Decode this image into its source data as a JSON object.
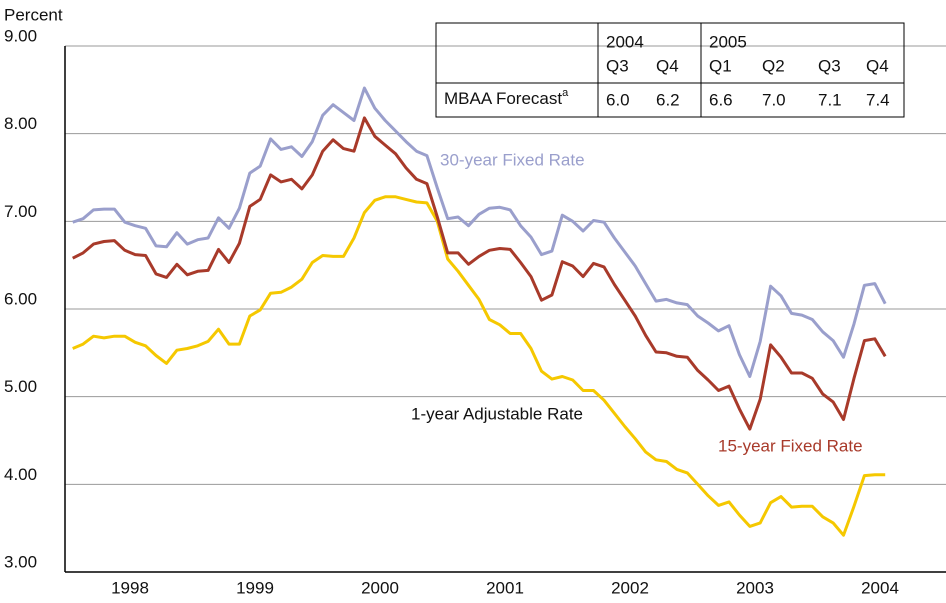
{
  "chart_data": {
    "type": "line",
    "ylabel": "Percent",
    "x": [
      1998.042,
      1998.125,
      1998.208,
      1998.292,
      1998.375,
      1998.458,
      1998.542,
      1998.625,
      1998.708,
      1998.792,
      1998.875,
      1998.958,
      1999.042,
      1999.125,
      1999.208,
      1999.292,
      1999.375,
      1999.458,
      1999.542,
      1999.625,
      1999.708,
      1999.792,
      1999.875,
      1999.958,
      2000.042,
      2000.125,
      2000.208,
      2000.292,
      2000.375,
      2000.458,
      2000.542,
      2000.625,
      2000.708,
      2000.792,
      2000.875,
      2000.958,
      2001.042,
      2001.125,
      2001.208,
      2001.292,
      2001.375,
      2001.458,
      2001.542,
      2001.625,
      2001.708,
      2001.792,
      2001.875,
      2001.958,
      2002.042,
      2002.125,
      2002.208,
      2002.292,
      2002.375,
      2002.458,
      2002.542,
      2002.625,
      2002.708,
      2002.792,
      2002.875,
      2002.958,
      2003.042,
      2003.125,
      2003.208,
      2003.292,
      2003.375,
      2003.458,
      2003.542,
      2003.625,
      2003.708,
      2003.792,
      2003.875,
      2003.958,
      2004.042,
      2004.125,
      2004.208,
      2004.292,
      2004.375,
      2004.458,
      2004.542
    ],
    "series": [
      {
        "name": "30-year Fixed Rate",
        "color": "#9a9fcc",
        "values": [
          6.99,
          7.03,
          7.13,
          7.14,
          7.14,
          6.99,
          6.95,
          6.92,
          6.72,
          6.71,
          6.87,
          6.74,
          6.79,
          6.81,
          7.04,
          6.92,
          7.15,
          7.55,
          7.63,
          7.94,
          7.82,
          7.85,
          7.74,
          7.91,
          8.21,
          8.33,
          8.24,
          8.15,
          8.52,
          8.29,
          8.15,
          8.03,
          7.91,
          7.8,
          7.75,
          7.38,
          7.03,
          7.05,
          6.95,
          7.08,
          7.15,
          7.16,
          7.13,
          6.95,
          6.82,
          6.62,
          6.66,
          7.07,
          7.0,
          6.89,
          7.01,
          6.99,
          6.81,
          6.65,
          6.49,
          6.29,
          6.09,
          6.11,
          6.07,
          6.05,
          5.92,
          5.84,
          5.75,
          5.81,
          5.48,
          5.23,
          5.63,
          6.26,
          6.15,
          5.95,
          5.93,
          5.88,
          5.74,
          5.64,
          5.45,
          5.83,
          6.27,
          6.29,
          6.06
        ]
      },
      {
        "name": "15-year Fixed Rate",
        "color": "#a83a2a",
        "values": [
          6.58,
          6.64,
          6.74,
          6.77,
          6.78,
          6.67,
          6.62,
          6.61,
          6.4,
          6.36,
          6.51,
          6.39,
          6.43,
          6.44,
          6.68,
          6.53,
          6.75,
          7.17,
          7.25,
          7.53,
          7.45,
          7.48,
          7.37,
          7.53,
          7.8,
          7.93,
          7.83,
          7.8,
          8.18,
          7.97,
          7.87,
          7.77,
          7.61,
          7.48,
          7.43,
          7.05,
          6.64,
          6.64,
          6.51,
          6.6,
          6.67,
          6.69,
          6.68,
          6.53,
          6.37,
          6.1,
          6.16,
          6.54,
          6.49,
          6.37,
          6.52,
          6.48,
          6.28,
          6.1,
          5.92,
          5.7,
          5.51,
          5.5,
          5.46,
          5.45,
          5.3,
          5.19,
          5.07,
          5.12,
          4.86,
          4.63,
          4.97,
          5.59,
          5.45,
          5.27,
          5.27,
          5.21,
          5.03,
          4.94,
          4.74,
          5.21,
          5.64,
          5.66,
          5.46
        ]
      },
      {
        "name": "1-year Adjustable Rate",
        "color": "#f5c800",
        "values": [
          5.55,
          5.6,
          5.69,
          5.67,
          5.69,
          5.69,
          5.62,
          5.58,
          5.47,
          5.38,
          5.53,
          5.55,
          5.58,
          5.63,
          5.77,
          5.6,
          5.6,
          5.92,
          5.99,
          6.18,
          6.19,
          6.25,
          6.34,
          6.53,
          6.61,
          6.6,
          6.6,
          6.81,
          7.1,
          7.24,
          7.28,
          7.28,
          7.25,
          7.22,
          7.21,
          7.0,
          6.57,
          6.43,
          6.27,
          6.11,
          5.88,
          5.82,
          5.72,
          5.72,
          5.55,
          5.29,
          5.2,
          5.23,
          5.19,
          5.07,
          5.07,
          4.96,
          4.81,
          4.66,
          4.52,
          4.37,
          4.28,
          4.26,
          4.17,
          4.13,
          4.0,
          3.87,
          3.76,
          3.8,
          3.65,
          3.52,
          3.56,
          3.79,
          3.86,
          3.74,
          3.75,
          3.75,
          3.63,
          3.56,
          3.42,
          3.75,
          4.1,
          4.11,
          4.11
        ]
      }
    ],
    "xlim": [
      1998,
      2005
    ],
    "xticks": [
      {
        "value": 1998.5,
        "label": "1998"
      },
      {
        "value": 1999.5,
        "label": "1999"
      },
      {
        "value": 2000.5,
        "label": "2000"
      },
      {
        "value": 2001.5,
        "label": "2001"
      },
      {
        "value": 2002.5,
        "label": "2002"
      },
      {
        "value": 2003.5,
        "label": "2003"
      },
      {
        "value": 2004.5,
        "label": "2004"
      }
    ],
    "ylim": [
      3,
      9
    ],
    "yticks": [
      {
        "value": 3,
        "label": "3.00"
      },
      {
        "value": 4,
        "label": "4.00"
      },
      {
        "value": 5,
        "label": "5.00"
      },
      {
        "value": 6,
        "label": "6.00"
      },
      {
        "value": 7,
        "label": "7.00"
      },
      {
        "value": 8,
        "label": "8.00"
      },
      {
        "value": 9,
        "label": "9.00"
      }
    ],
    "grid": true,
    "forecast_table": {
      "years": [
        "2004",
        "2005"
      ],
      "quarters": [
        "Q3",
        "Q4",
        "Q1",
        "Q2",
        "Q3",
        "Q4"
      ],
      "row_label": "MBAA Forecast",
      "row_note": "a",
      "values": [
        "6.0",
        "6.2",
        "6.6",
        "7.0",
        "7.1",
        "7.4"
      ]
    }
  }
}
